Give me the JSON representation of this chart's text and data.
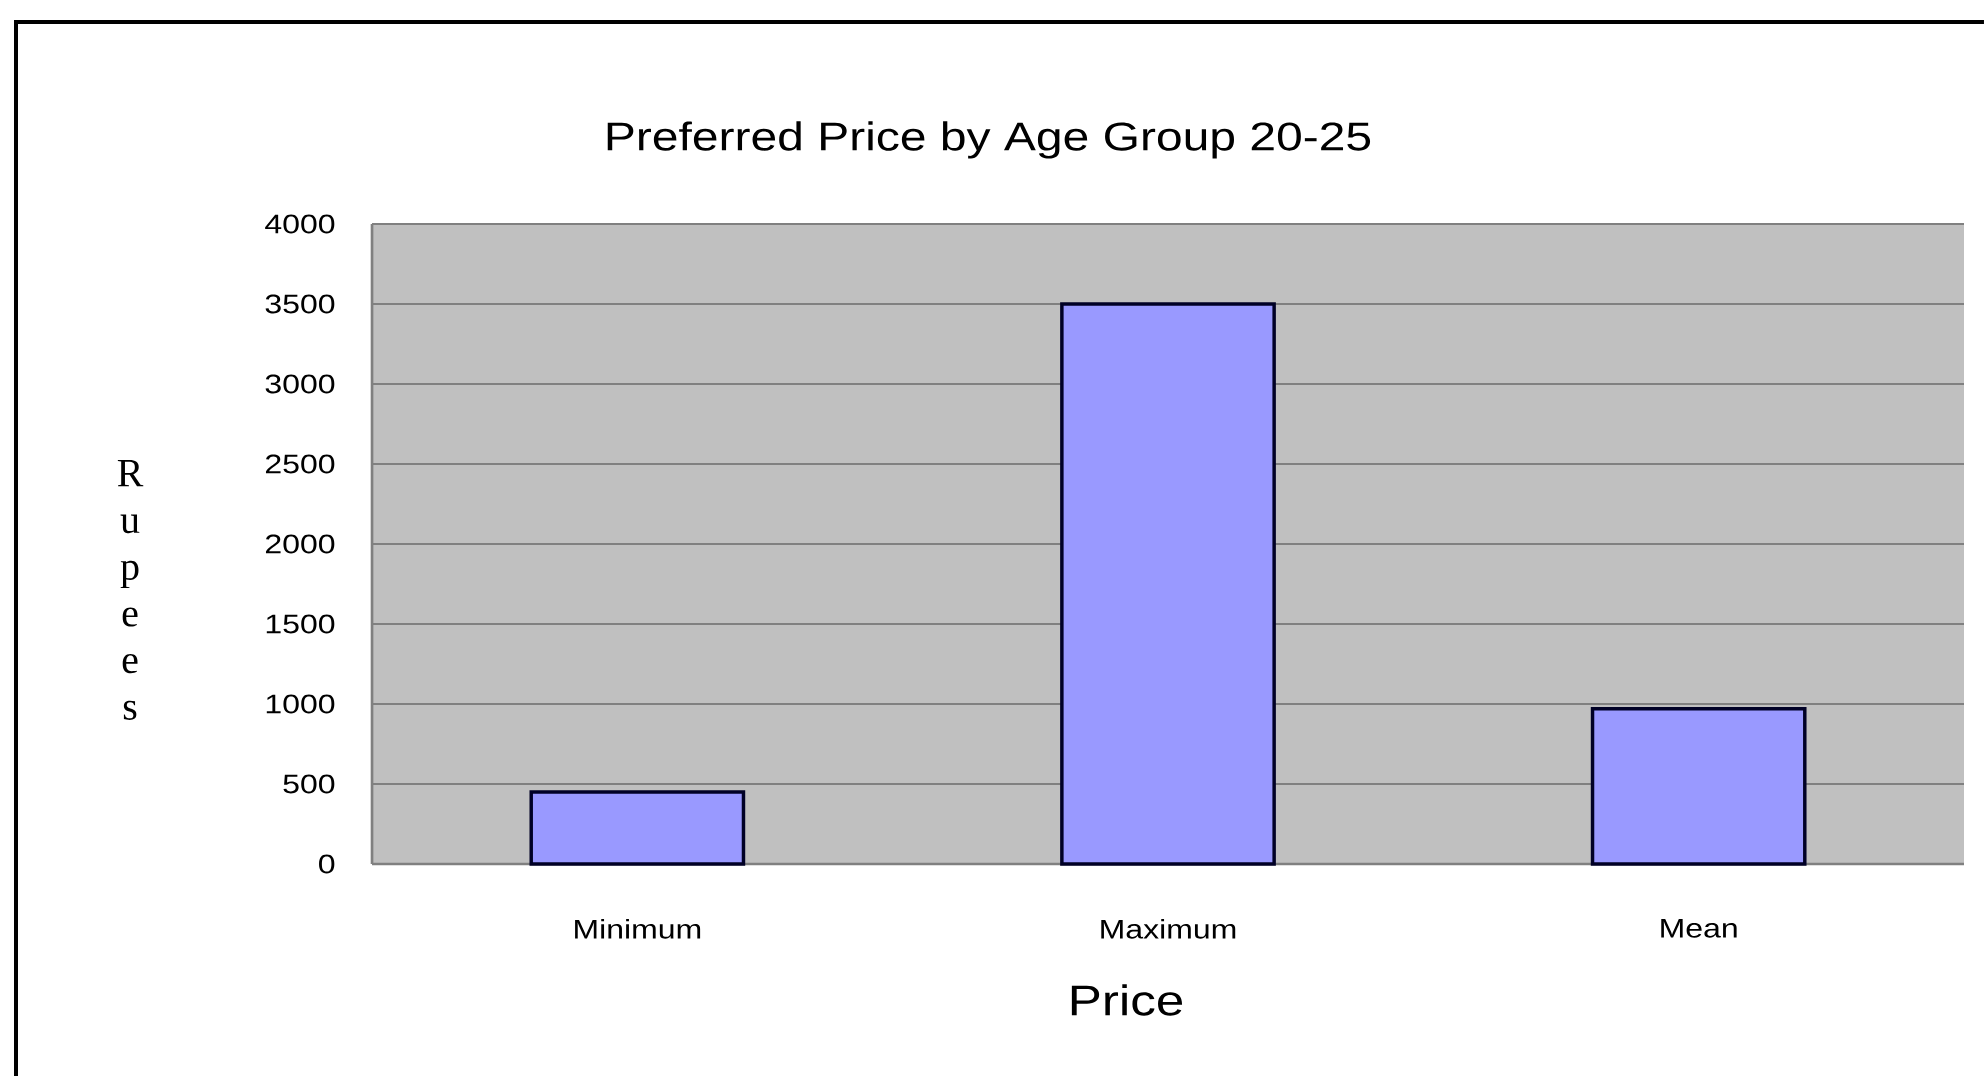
{
  "chart_data": {
    "type": "bar",
    "title": "Preferred Price by Age Group 20-25",
    "xlabel": "Price",
    "ylabel": "Rupees",
    "categories": [
      "Minimum",
      "Maximum",
      "Mean"
    ],
    "values": [
      450,
      3500,
      970
    ],
    "color": "#9999ff",
    "ylim": [
      0,
      4000
    ],
    "yticks": [
      0,
      500,
      1000,
      1500,
      2000,
      2500,
      3000,
      3500,
      4000
    ],
    "grid": "y"
  }
}
